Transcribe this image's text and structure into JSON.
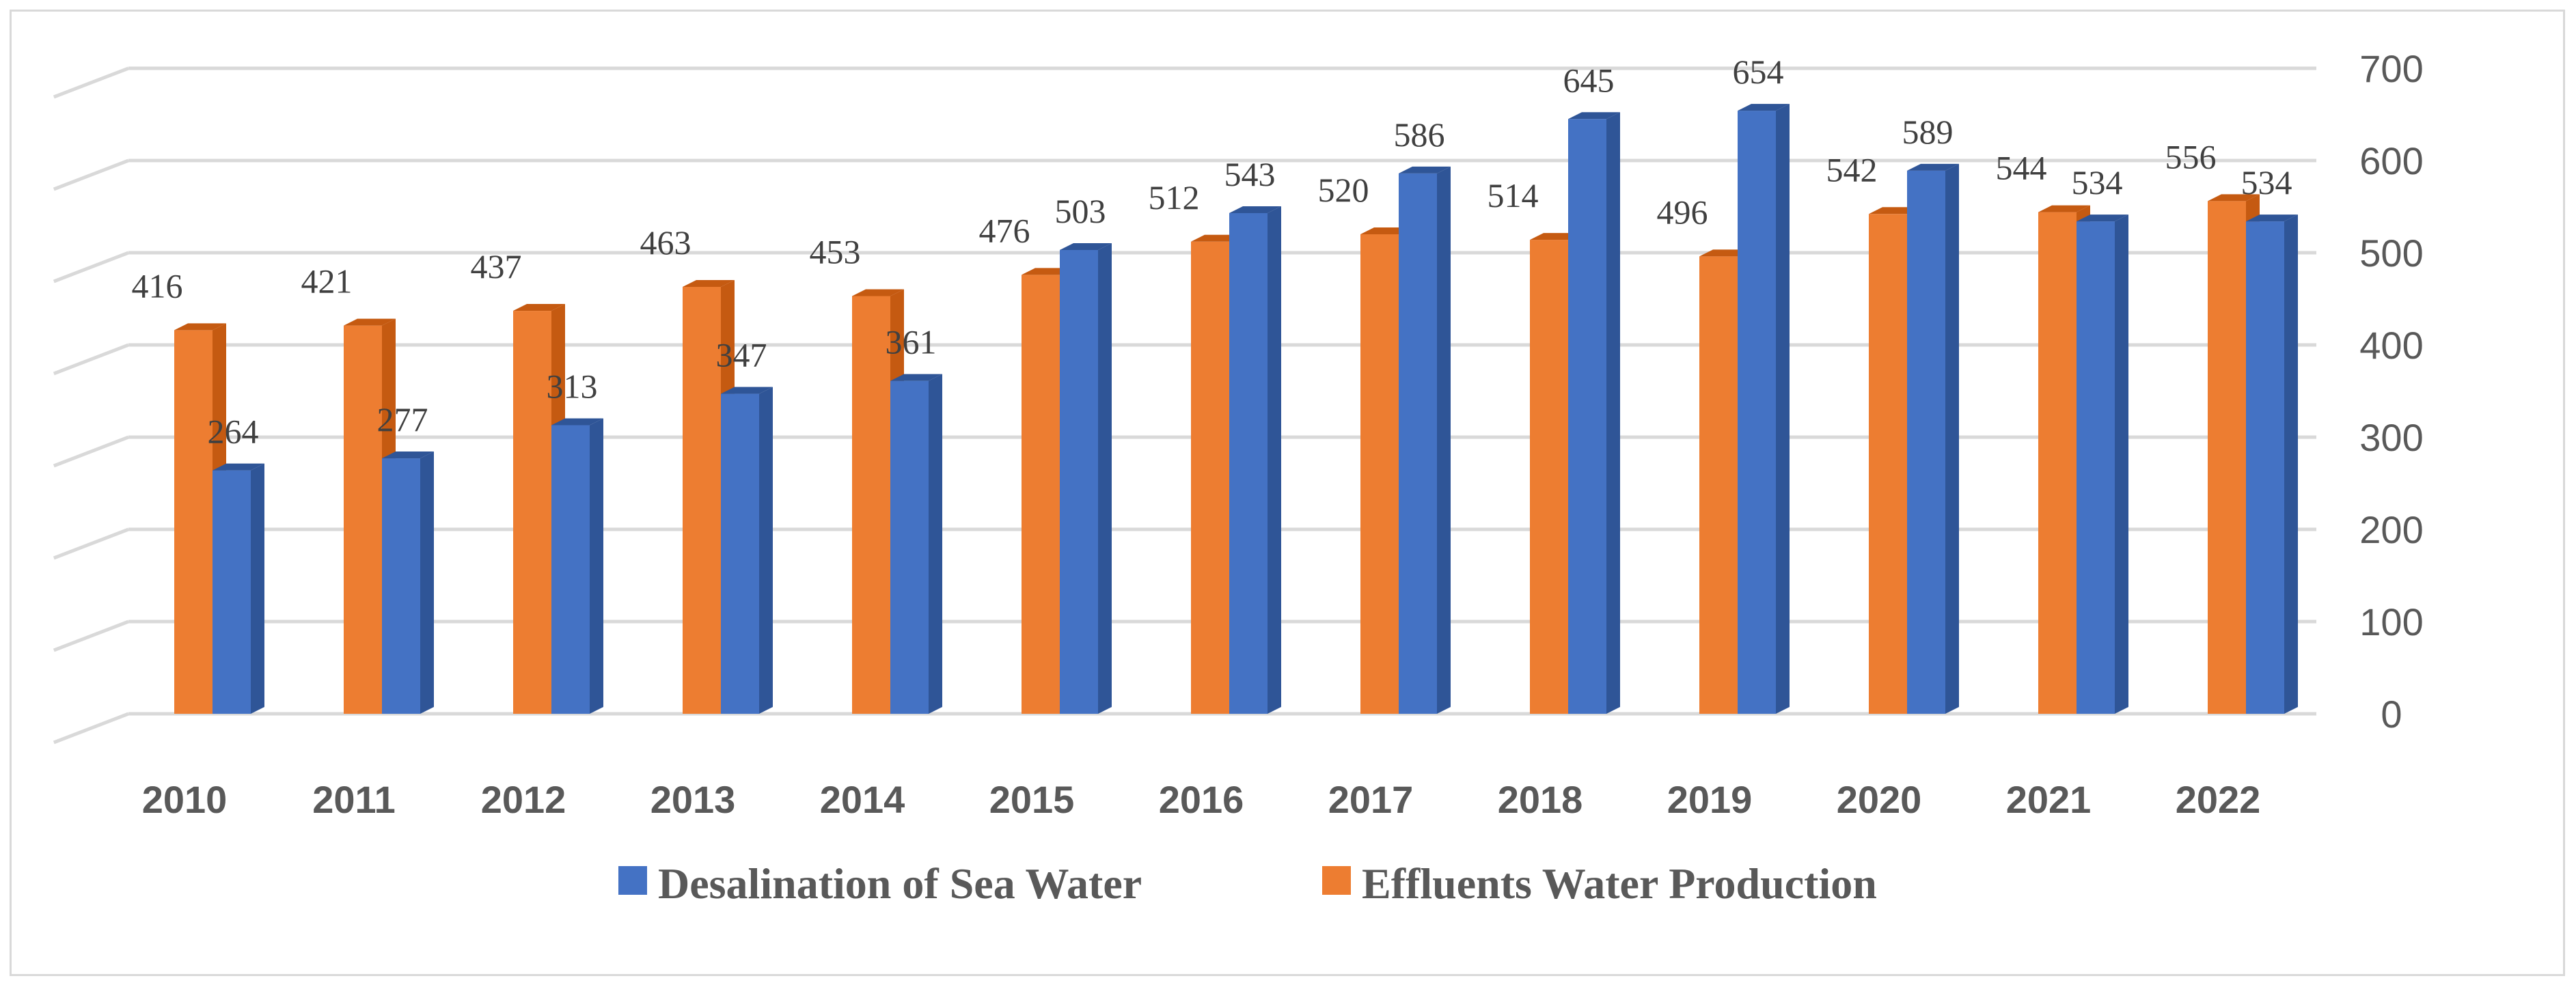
{
  "chart_data": {
    "type": "bar",
    "title": "",
    "xlabel": "",
    "ylabel": "",
    "ylim": [
      0,
      700
    ],
    "yticks": [
      0,
      100,
      200,
      300,
      400,
      500,
      600,
      700
    ],
    "grid": true,
    "legend_position": "bottom",
    "categories": [
      "2010",
      "2011",
      "2012",
      "2013",
      "2014",
      "2015",
      "2016",
      "2017",
      "2018",
      "2019",
      "2020",
      "2021",
      "2022"
    ],
    "series": [
      {
        "name": "Effluents Water Production",
        "color": "#ED7D31",
        "side": "#C55A11",
        "top": "#F4B183",
        "values": [
          416,
          421,
          437,
          463,
          453,
          476,
          512,
          520,
          514,
          496,
          542,
          544,
          556
        ]
      },
      {
        "name": "Desalination of Sea Water",
        "color": "#4472C4",
        "side": "#2F5597",
        "top": "#8FAADC",
        "values": [
          264,
          277,
          313,
          347,
          361,
          503,
          543,
          586,
          645,
          654,
          589,
          534,
          534
        ]
      }
    ],
    "legend_order": [
      "Desalination of Sea Water",
      "Effluents Water Production"
    ]
  }
}
